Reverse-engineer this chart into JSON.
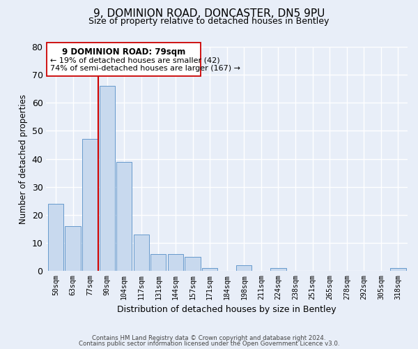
{
  "title_line1": "9, DOMINION ROAD, DONCASTER, DN5 9PU",
  "title_line2": "Size of property relative to detached houses in Bentley",
  "xlabel": "Distribution of detached houses by size in Bentley",
  "ylabel": "Number of detached properties",
  "bin_labels": [
    "50sqm",
    "63sqm",
    "77sqm",
    "90sqm",
    "104sqm",
    "117sqm",
    "131sqm",
    "144sqm",
    "157sqm",
    "171sqm",
    "184sqm",
    "198sqm",
    "211sqm",
    "224sqm",
    "238sqm",
    "251sqm",
    "265sqm",
    "278sqm",
    "292sqm",
    "305sqm",
    "318sqm"
  ],
  "bar_heights": [
    24,
    16,
    47,
    66,
    39,
    13,
    6,
    6,
    5,
    1,
    0,
    2,
    0,
    1,
    0,
    0,
    0,
    0,
    0,
    0,
    1
  ],
  "bar_color": "#c8d9ee",
  "bar_edge_color": "#6699cc",
  "highlight_color": "#cc0000",
  "ylim": [
    0,
    80
  ],
  "yticks": [
    0,
    10,
    20,
    30,
    40,
    50,
    60,
    70,
    80
  ],
  "ann_line1": "9 DOMINION ROAD: 79sqm",
  "ann_line2": "← 19% of detached houses are smaller (42)",
  "ann_line3": "74% of semi-detached houses are larger (167) →",
  "footer_line1": "Contains HM Land Registry data © Crown copyright and database right 2024.",
  "footer_line2": "Contains public sector information licensed under the Open Government Licence v3.0.",
  "background_color": "#e8eef8",
  "grid_color": "#ffffff",
  "fig_background": "#e8eef8"
}
